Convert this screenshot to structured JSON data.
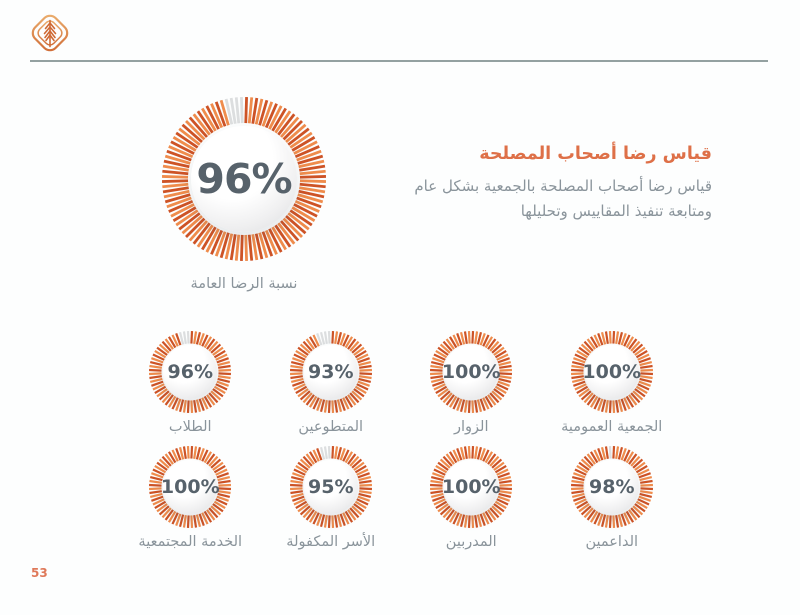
{
  "logo": {
    "icon": "tree-diamond-logo"
  },
  "header": {
    "title": "قياس رضا أصحاب المصلحة",
    "subtitle": "قياس رضا أصحاب المصلحة بالجمعية بشكل عام ومتابعة تنفيذ المقاييس وتحليلها"
  },
  "page": {
    "number": "53"
  },
  "colors": {
    "accent_orange": "#de7048",
    "donut_tick_dark": "#cd5326",
    "donut_tick_light": "#ef8c4c",
    "donut_tick_remainder": "#dcdedf",
    "percent_text": "#57626b",
    "label_gray": "#8a949b",
    "divider_gray": "#94a1a1",
    "page_number": "#df795a"
  },
  "chart_data": {
    "type": "donut-grid",
    "unit": "%",
    "main": {
      "value": 96,
      "label": "96%",
      "category": "نسبة الرضا العامة"
    },
    "items": [
      {
        "value": 100,
        "label": "100%",
        "category": "الجمعية العمومية"
      },
      {
        "value": 100,
        "label": "100%",
        "category": "الزوار"
      },
      {
        "value": 93,
        "label": "93%",
        "category": "المتطوعين"
      },
      {
        "value": 96,
        "label": "96%",
        "category": "الطلاب"
      },
      {
        "value": 98,
        "label": "98%",
        "category": "الداعمين"
      },
      {
        "value": 100,
        "label": "100%",
        "category": "المدربين"
      },
      {
        "value": 95,
        "label": "95%",
        "category": "الأسر المكفولة"
      },
      {
        "value": 100,
        "label": "100%",
        "category": "الخدمة المجتمعية"
      }
    ]
  }
}
